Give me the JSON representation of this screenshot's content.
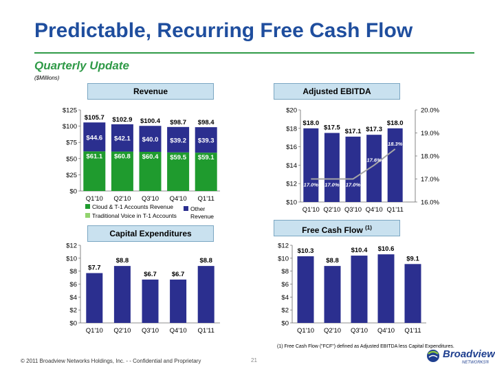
{
  "title": "Predictable, Recurring Free Cash Flow",
  "subtitle": "Quarterly Update",
  "units": "($Millions)",
  "footnote": "(1)    Free Cash Flow (\"FCF\") defined as Adjusted EBITDA less Capital Expenditures.",
  "copyright": "© 2011 Broadview Networks Holdings, Inc.  - -  Confidential and Proprietary",
  "page_number": "21",
  "logo": {
    "name": "Broadview",
    "sub": "NETWORKS®"
  },
  "colors": {
    "title": "#1f4e9e",
    "accent_green": "#2f9a47",
    "navy_bar": "#2b2f8f",
    "green_bar": "#1f9b2e",
    "light_green_bar": "#92d36e",
    "line": "#a6a6a6",
    "header_fill": "#c9e1ef"
  },
  "chart_data": [
    {
      "header": "Revenue",
      "type": "bar",
      "stacked": true,
      "categories": [
        "Q1'10",
        "Q2'10",
        "Q3'10",
        "Q4'10",
        "Q1'11"
      ],
      "series": [
        {
          "name": "Cloud & T-1 Accounts Revenue",
          "values": [
            61.1,
            60.8,
            60.4,
            59.5,
            59.1
          ],
          "labels": [
            "$61.1",
            "$60.8",
            "$60.4",
            "$59.5",
            "$59.1"
          ]
        },
        {
          "name": "Traditional Voice in T-1 Accounts",
          "values": [
            0.0,
            0.0,
            0.0,
            0.0,
            0.0
          ],
          "labels": [
            "",
            "",
            "",
            "",
            ""
          ]
        },
        {
          "name": "Other Revenue",
          "values": [
            44.6,
            42.1,
            40.0,
            39.2,
            39.3
          ],
          "labels": [
            "$44.6",
            "$42.1",
            "$40.0",
            "$39.2",
            "$39.3"
          ]
        }
      ],
      "totals": [
        "$105.7",
        "$102.9",
        "$100.4",
        "$98.7",
        "$98.4"
      ],
      "total_values": [
        105.7,
        102.9,
        100.4,
        98.7,
        98.4
      ],
      "ylim": [
        0,
        125
      ],
      "yticks": [
        "$0",
        "$25",
        "$50",
        "$75",
        "$100",
        "$125"
      ],
      "ytick_values": [
        0,
        25,
        50,
        75,
        100,
        125
      ],
      "legend": "bottom"
    },
    {
      "header": "Adjusted EBITDA",
      "type": "bar",
      "categories": [
        "Q1'10",
        "Q2'10",
        "Q3'10",
        "Q4'10",
        "Q1'11"
      ],
      "series": [
        {
          "values": [
            18.0,
            17.5,
            17.1,
            17.3,
            18.0
          ],
          "labels": [
            "$18.0",
            "$17.5",
            "$17.1",
            "$17.3",
            "$18.0"
          ]
        }
      ],
      "line": {
        "type": "line",
        "axis": "right",
        "values": [
          17.0,
          17.0,
          17.0,
          17.6,
          18.3
        ],
        "labels": [
          "17.0%",
          "17.0%",
          "17.0%",
          "17.6%",
          "18.3%"
        ]
      },
      "ylim": [
        10,
        20
      ],
      "yticks": [
        "$10",
        "$12",
        "$14",
        "$16",
        "$18",
        "$20"
      ],
      "ytick_values": [
        10,
        12,
        14,
        16,
        18,
        20
      ],
      "y2lim": [
        16,
        20
      ],
      "y2ticks": [
        "16.0%",
        "17.0%",
        "18.0%",
        "19.0%",
        "20.0%"
      ],
      "y2tick_values": [
        16,
        17,
        18,
        19,
        20
      ]
    },
    {
      "header": "Capital Expenditures",
      "type": "bar",
      "categories": [
        "Q1'10",
        "Q2'10",
        "Q3'10",
        "Q4'10",
        "Q1'11"
      ],
      "series": [
        {
          "values": [
            7.7,
            8.8,
            6.7,
            6.7,
            8.8
          ],
          "labels": [
            "$7.7",
            "$8.8",
            "$6.7",
            "$6.7",
            "$8.8"
          ]
        }
      ],
      "ylim": [
        0,
        12
      ],
      "yticks": [
        "$0",
        "$2",
        "$4",
        "$6",
        "$8",
        "$10",
        "$12"
      ],
      "ytick_values": [
        0,
        2,
        4,
        6,
        8,
        10,
        12
      ]
    },
    {
      "header": "Free Cash Flow",
      "header_note": "(1)",
      "type": "bar",
      "categories": [
        "Q1'10",
        "Q2'10",
        "Q3'10",
        "Q4'10",
        "Q1'11"
      ],
      "series": [
        {
          "values": [
            10.3,
            8.8,
            10.4,
            10.6,
            9.1
          ],
          "labels": [
            "$10.3",
            "$8.8",
            "$10.4",
            "$10.6",
            "$9.1"
          ]
        }
      ],
      "ylim": [
        0,
        12
      ],
      "yticks": [
        "$0",
        "$2",
        "$4",
        "$6",
        "$8",
        "$10",
        "$12"
      ],
      "ytick_values": [
        0,
        2,
        4,
        6,
        8,
        10,
        12
      ]
    }
  ]
}
